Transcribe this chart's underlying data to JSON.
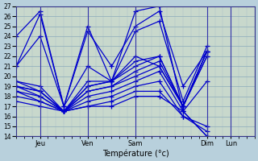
{
  "xlabel": "Température (°c)",
  "ylim": [
    14,
    27
  ],
  "yticks": [
    14,
    15,
    16,
    17,
    18,
    19,
    20,
    21,
    22,
    23,
    24,
    25,
    26,
    27
  ],
  "day_labels": [
    "Jeu",
    "Ven",
    "Sam",
    "Dim",
    "Lun"
  ],
  "day_positions": [
    24,
    72,
    120,
    192,
    216
  ],
  "line_color": "#0000cc",
  "bg_color": "#b8d0dc",
  "plot_bg": "#c8dcd0",
  "grid_color": "#9ab0be",
  "grid_color2": "#b8c8d4",
  "marker": "+",
  "markersize": 4,
  "linewidth": 0.9,
  "vline_color": "#3333aa",
  "xlim": [
    0,
    240
  ],
  "series": [
    {
      "start": 0,
      "points": [
        24.0,
        26.5,
        17.0,
        25.0,
        19.5,
        26.5,
        27.0,
        16.5,
        14.0
      ]
    },
    {
      "start": 0,
      "points": [
        21.0,
        26.2,
        17.0,
        24.5,
        21.0,
        25.0,
        26.5,
        19.0,
        22.5
      ]
    },
    {
      "start": 0,
      "points": [
        21.0,
        24.0,
        17.0,
        21.0,
        19.5,
        24.5,
        25.5,
        17.5,
        23.0
      ]
    },
    {
      "start": 0,
      "points": [
        19.5,
        19.0,
        16.5,
        19.5,
        19.5,
        22.0,
        21.0,
        17.0,
        22.5
      ]
    },
    {
      "start": 0,
      "points": [
        19.5,
        18.5,
        16.5,
        19.0,
        19.5,
        21.5,
        22.0,
        17.0,
        22.5
      ]
    },
    {
      "start": 0,
      "points": [
        19.0,
        18.5,
        16.5,
        19.0,
        19.5,
        21.0,
        22.0,
        17.0,
        22.5
      ]
    },
    {
      "start": 0,
      "points": [
        19.0,
        18.5,
        16.5,
        18.5,
        19.0,
        20.5,
        21.5,
        17.0,
        22.0
      ]
    },
    {
      "start": 0,
      "points": [
        19.0,
        18.0,
        16.5,
        18.5,
        19.0,
        20.0,
        21.0,
        17.0,
        22.0
      ]
    },
    {
      "start": 0,
      "points": [
        18.5,
        18.0,
        16.5,
        18.0,
        18.5,
        19.5,
        20.5,
        16.5,
        19.5
      ]
    },
    {
      "start": 0,
      "points": [
        18.5,
        17.5,
        16.5,
        17.5,
        18.0,
        19.0,
        19.5,
        16.0,
        15.0
      ]
    },
    {
      "start": 0,
      "points": [
        18.0,
        17.5,
        16.5,
        17.0,
        17.5,
        18.5,
        18.5,
        16.0,
        14.5
      ]
    },
    {
      "start": 0,
      "points": [
        17.5,
        17.0,
        16.5,
        17.0,
        17.0,
        18.0,
        18.0,
        16.5,
        14.0
      ]
    }
  ],
  "hours_per_point": 24,
  "vline_positions": [
    24,
    72,
    120,
    192,
    216
  ]
}
